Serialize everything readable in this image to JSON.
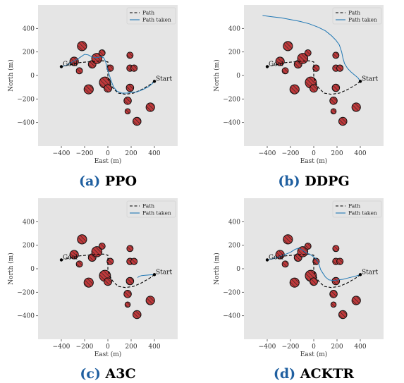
{
  "figure": {
    "hatch_color": "#222222",
    "obstacle_color": "#c0393b",
    "panel_bg": "#e5e5e5",
    "planned_path_color": "#000000",
    "taken_path_color": "#1f77b4",
    "caption_letter_color": "#1f5fa0",
    "caption_name_color": "#000000"
  },
  "chart_data": [
    {
      "type": "line",
      "caption_letter": "(a)",
      "caption_name": "PPO",
      "xlabel": "East (m)",
      "ylabel": "North (m)",
      "xlim": [
        -600,
        600
      ],
      "ylim": [
        -600,
        600
      ],
      "xticks": [
        -400,
        -200,
        0,
        200,
        400
      ],
      "yticks": [
        -400,
        -200,
        0,
        200,
        400
      ],
      "xtick_labels": [
        "−400",
        "−200",
        "0",
        "200",
        "400"
      ],
      "ytick_labels": [
        "−400",
        "−200",
        "0",
        "200",
        "400"
      ],
      "grid": false,
      "legend_position": "top-right",
      "legend": [
        "Path",
        "Path taken"
      ],
      "start_label": "Start",
      "goal_label": "Goal",
      "start": [
        400,
        -50
      ],
      "goal": [
        -400,
        75
      ],
      "obstacles": [
        {
          "x": -222,
          "y": 250,
          "r": 40
        },
        {
          "x": -290,
          "y": 120,
          "r": 37
        },
        {
          "x": -245,
          "y": 40,
          "r": 27
        },
        {
          "x": -135,
          "y": 95,
          "r": 33
        },
        {
          "x": -95,
          "y": 145,
          "r": 44
        },
        {
          "x": -50,
          "y": 192,
          "r": 27
        },
        {
          "x": 20,
          "y": 62,
          "r": 28
        },
        {
          "x": -165,
          "y": -118,
          "r": 40
        },
        {
          "x": -25,
          "y": -60,
          "r": 48
        },
        {
          "x": 0,
          "y": -110,
          "r": 33
        },
        {
          "x": 190,
          "y": 172,
          "r": 27
        },
        {
          "x": 190,
          "y": 62,
          "r": 28
        },
        {
          "x": 225,
          "y": 62,
          "r": 28
        },
        {
          "x": 190,
          "y": -105,
          "r": 32
        },
        {
          "x": 170,
          "y": -215,
          "r": 32
        },
        {
          "x": 170,
          "y": -305,
          "r": 23
        },
        {
          "x": 250,
          "y": -390,
          "r": 35
        },
        {
          "x": 365,
          "y": -270,
          "r": 37
        }
      ],
      "series": [
        {
          "name": "Path",
          "style": "dashed",
          "x": [
            400,
            360,
            290,
            220,
            150,
            90,
            45,
            15,
            0,
            0,
            -40,
            -120,
            -240,
            -330,
            -400
          ],
          "y": [
            -50,
            -80,
            -120,
            -150,
            -160,
            -150,
            -110,
            -60,
            -10,
            115,
            125,
            120,
            110,
            90,
            75
          ]
        },
        {
          "name": "Path taken",
          "style": "solid",
          "x": [
            400,
            380,
            350,
            300,
            250,
            200,
            160,
            120,
            80,
            50,
            30,
            15,
            0,
            -10,
            -20,
            -35,
            -60,
            -80,
            -110,
            -140,
            -170,
            -200,
            -230,
            -260,
            -300,
            -330,
            -360,
            -400
          ],
          "y": [
            -50,
            -70,
            -95,
            -120,
            -140,
            -145,
            -150,
            -150,
            -135,
            -100,
            -50,
            -5,
            40,
            80,
            120,
            150,
            160,
            155,
            150,
            160,
            175,
            180,
            160,
            140,
            120,
            100,
            85,
            75
          ]
        }
      ]
    },
    {
      "type": "line",
      "caption_letter": "(b)",
      "caption_name": "DDPG",
      "xlabel": "East (m)",
      "ylabel": "North (m)",
      "xlim": [
        -600,
        600
      ],
      "ylim": [
        -600,
        600
      ],
      "xticks": [
        -400,
        -200,
        0,
        200,
        400
      ],
      "yticks": [
        -400,
        -200,
        0,
        200,
        400
      ],
      "xtick_labels": [
        "−400",
        "−200",
        "0",
        "200",
        "400"
      ],
      "ytick_labels": [
        "−400",
        "−200",
        "0",
        "200",
        "400"
      ],
      "grid": false,
      "legend_position": "top-right",
      "legend": [
        "Path",
        "Path taken"
      ],
      "start_label": "Start",
      "goal_label": "Goal",
      "start": [
        400,
        -50
      ],
      "goal": [
        -400,
        75
      ],
      "obstacles": [
        {
          "x": -222,
          "y": 250,
          "r": 40
        },
        {
          "x": -290,
          "y": 120,
          "r": 37
        },
        {
          "x": -245,
          "y": 40,
          "r": 27
        },
        {
          "x": -135,
          "y": 95,
          "r": 33
        },
        {
          "x": -95,
          "y": 145,
          "r": 44
        },
        {
          "x": -50,
          "y": 192,
          "r": 27
        },
        {
          "x": 20,
          "y": 62,
          "r": 28
        },
        {
          "x": -165,
          "y": -118,
          "r": 40
        },
        {
          "x": -25,
          "y": -60,
          "r": 48
        },
        {
          "x": 0,
          "y": -110,
          "r": 33
        },
        {
          "x": 190,
          "y": 172,
          "r": 27
        },
        {
          "x": 190,
          "y": 62,
          "r": 28
        },
        {
          "x": 225,
          "y": 62,
          "r": 28
        },
        {
          "x": 190,
          "y": -105,
          "r": 32
        },
        {
          "x": 170,
          "y": -215,
          "r": 32
        },
        {
          "x": 170,
          "y": -305,
          "r": 23
        },
        {
          "x": 250,
          "y": -390,
          "r": 35
        },
        {
          "x": 365,
          "y": -270,
          "r": 37
        }
      ],
      "series": [
        {
          "name": "Path",
          "style": "dashed",
          "x": [
            400,
            360,
            290,
            220,
            150,
            90,
            45,
            15,
            0,
            0,
            -40,
            -120,
            -240,
            -330,
            -400
          ],
          "y": [
            -50,
            -80,
            -120,
            -150,
            -160,
            -150,
            -110,
            -60,
            -10,
            115,
            125,
            120,
            110,
            90,
            75
          ]
        },
        {
          "name": "Path taken",
          "style": "solid",
          "x": [
            400,
            380,
            350,
            320,
            290,
            265,
            250,
            240,
            220,
            190,
            150,
            100,
            40,
            -40,
            -120,
            -200,
            -280,
            -360,
            -440
          ],
          "y": [
            -50,
            -20,
            5,
            30,
            60,
            100,
            150,
            200,
            260,
            300,
            340,
            380,
            410,
            440,
            460,
            475,
            490,
            500,
            510
          ]
        }
      ]
    },
    {
      "type": "line",
      "caption_letter": "(c)",
      "caption_name": "A3C",
      "xlabel": "East (m)",
      "ylabel": "North (m)",
      "xlim": [
        -600,
        600
      ],
      "ylim": [
        -600,
        600
      ],
      "xticks": [
        -400,
        -200,
        0,
        200,
        400
      ],
      "yticks": [
        -400,
        -200,
        0,
        200,
        400
      ],
      "xtick_labels": [
        "−400",
        "−200",
        "0",
        "200",
        "400"
      ],
      "ytick_labels": [
        "−400",
        "−200",
        "0",
        "200",
        "400"
      ],
      "grid": false,
      "legend_position": "top-right",
      "legend": [
        "Path",
        "Path taken"
      ],
      "start_label": "Start",
      "goal_label": "Goal",
      "start": [
        400,
        -50
      ],
      "goal": [
        -400,
        75
      ],
      "obstacles": [
        {
          "x": -222,
          "y": 250,
          "r": 40
        },
        {
          "x": -290,
          "y": 120,
          "r": 37
        },
        {
          "x": -245,
          "y": 40,
          "r": 27
        },
        {
          "x": -135,
          "y": 95,
          "r": 33
        },
        {
          "x": -95,
          "y": 145,
          "r": 44
        },
        {
          "x": -50,
          "y": 192,
          "r": 27
        },
        {
          "x": 20,
          "y": 62,
          "r": 28
        },
        {
          "x": -165,
          "y": -118,
          "r": 40
        },
        {
          "x": -25,
          "y": -60,
          "r": 48
        },
        {
          "x": 0,
          "y": -110,
          "r": 33
        },
        {
          "x": 190,
          "y": 172,
          "r": 27
        },
        {
          "x": 190,
          "y": 62,
          "r": 28
        },
        {
          "x": 225,
          "y": 62,
          "r": 28
        },
        {
          "x": 190,
          "y": -105,
          "r": 32
        },
        {
          "x": 170,
          "y": -215,
          "r": 32
        },
        {
          "x": 170,
          "y": -305,
          "r": 23
        },
        {
          "x": 250,
          "y": -390,
          "r": 35
        },
        {
          "x": 365,
          "y": -270,
          "r": 37
        }
      ],
      "series": [
        {
          "name": "Path",
          "style": "dashed",
          "x": [
            400,
            360,
            290,
            220,
            150,
            90,
            45,
            15,
            0,
            0,
            -40,
            -120,
            -240,
            -330,
            -400
          ],
          "y": [
            -50,
            -80,
            -120,
            -150,
            -160,
            -150,
            -110,
            -60,
            -10,
            115,
            125,
            120,
            110,
            90,
            75
          ]
        },
        {
          "name": "Path taken",
          "style": "solid",
          "x": [
            400,
            360,
            320,
            290,
            270,
            255
          ],
          "y": [
            -50,
            -52,
            -55,
            -58,
            -65,
            -75
          ]
        }
      ]
    },
    {
      "type": "line",
      "caption_letter": "(d)",
      "caption_name": "ACKTR",
      "xlabel": "East (m)",
      "ylabel": "North (m)",
      "xlim": [
        -600,
        600
      ],
      "ylim": [
        -600,
        600
      ],
      "xticks": [
        -400,
        -200,
        0,
        200,
        400
      ],
      "yticks": [
        -400,
        -200,
        0,
        200,
        400
      ],
      "xtick_labels": [
        "−400",
        "−200",
        "0",
        "200",
        "400"
      ],
      "ytick_labels": [
        "−400",
        "−200",
        "0",
        "200",
        "400"
      ],
      "grid": false,
      "legend_position": "top-right",
      "legend": [
        "Path",
        "Path taken"
      ],
      "start_label": "Start",
      "goal_label": "Goal",
      "start": [
        400,
        -50
      ],
      "goal": [
        -400,
        75
      ],
      "obstacles": [
        {
          "x": -222,
          "y": 250,
          "r": 40
        },
        {
          "x": -290,
          "y": 120,
          "r": 37
        },
        {
          "x": -245,
          "y": 40,
          "r": 27
        },
        {
          "x": -135,
          "y": 95,
          "r": 33
        },
        {
          "x": -95,
          "y": 145,
          "r": 44
        },
        {
          "x": -50,
          "y": 192,
          "r": 27
        },
        {
          "x": 20,
          "y": 62,
          "r": 28
        },
        {
          "x": -165,
          "y": -118,
          "r": 40
        },
        {
          "x": -25,
          "y": -60,
          "r": 48
        },
        {
          "x": 0,
          "y": -110,
          "r": 33
        },
        {
          "x": 190,
          "y": 172,
          "r": 27
        },
        {
          "x": 190,
          "y": 62,
          "r": 28
        },
        {
          "x": 225,
          "y": 62,
          "r": 28
        },
        {
          "x": 190,
          "y": -105,
          "r": 32
        },
        {
          "x": 170,
          "y": -215,
          "r": 32
        },
        {
          "x": 170,
          "y": -305,
          "r": 23
        },
        {
          "x": 250,
          "y": -390,
          "r": 35
        },
        {
          "x": 365,
          "y": -270,
          "r": 37
        }
      ],
      "series": [
        {
          "name": "Path",
          "style": "dashed",
          "x": [
            400,
            360,
            290,
            220,
            150,
            90,
            45,
            15,
            0,
            0,
            -40,
            -120,
            -240,
            -330,
            -400
          ],
          "y": [
            -50,
            -80,
            -120,
            -150,
            -160,
            -150,
            -110,
            -60,
            -10,
            115,
            125,
            120,
            110,
            90,
            75
          ]
        },
        {
          "name": "Path taken",
          "style": "solid",
          "x": [
            400,
            370,
            330,
            290,
            250,
            210,
            170,
            130,
            100,
            80,
            60,
            50,
            40,
            20,
            0,
            -20,
            -40,
            -70,
            -100,
            -130,
            -160,
            -200,
            -250,
            -300,
            -350,
            -400
          ],
          "y": [
            -50,
            -60,
            -70,
            -80,
            -90,
            -95,
            -100,
            -95,
            -70,
            -40,
            -10,
            20,
            55,
            85,
            100,
            115,
            125,
            140,
            160,
            175,
            165,
            140,
            120,
            100,
            85,
            75
          ]
        }
      ]
    }
  ]
}
